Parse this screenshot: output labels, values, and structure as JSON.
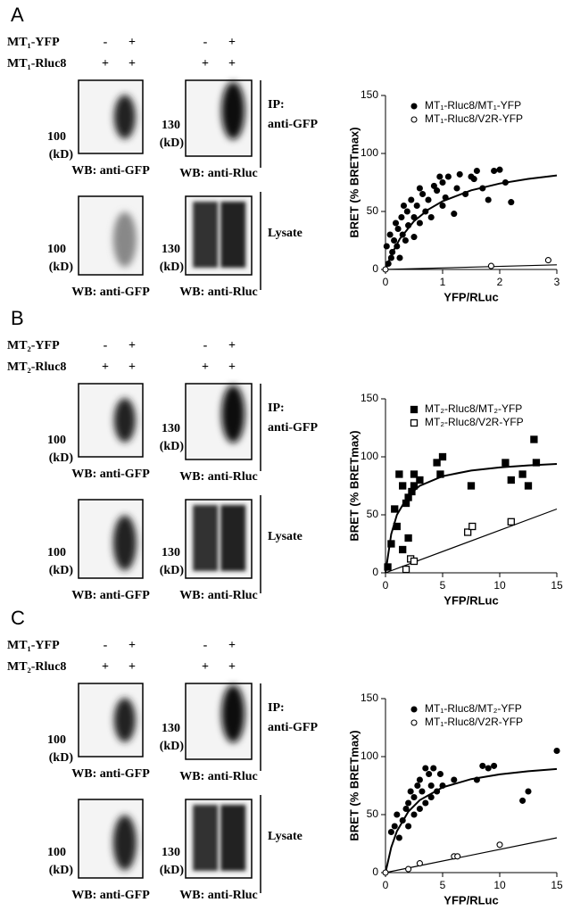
{
  "panels": [
    {
      "letter": "A",
      "rows": [
        {
          "label": "MT₁-YFP",
          "marks": [
            "-",
            "+",
            "-",
            "+"
          ]
        },
        {
          "label": "MT₁-Rluc8",
          "marks": [
            "+",
            "+",
            "+",
            "+"
          ]
        }
      ],
      "blots": [
        {
          "mw": "100",
          "kd": "(kD)",
          "wb": "WB: anti-GFP"
        },
        {
          "mw": "130",
          "kd": "(kD)",
          "wb": "WB: anti-Rluc"
        },
        {
          "mw": "100",
          "kd": "(kD)",
          "wb": "WB: anti-GFP"
        },
        {
          "mw": "130",
          "kd": "(kD)",
          "wb": "WB: anti-Rluc"
        }
      ],
      "ip": "IP:",
      "ip_ab": "anti-GFP",
      "lysate": "Lysate"
    },
    {
      "letter": "B",
      "rows": [
        {
          "label": "MT₂-YFP",
          "marks": [
            "-",
            "+",
            "-",
            "+"
          ]
        },
        {
          "label": "MT₂-Rluc8",
          "marks": [
            "+",
            "+",
            "+",
            "+"
          ]
        }
      ],
      "blots": [
        {
          "mw": "100",
          "kd": "(kD)",
          "wb": "WB: anti-GFP"
        },
        {
          "mw": "130",
          "kd": "(kD)",
          "wb": "WB: anti-Rluc"
        },
        {
          "mw": "100",
          "kd": "(kD)",
          "wb": "WB: anti-GFP"
        },
        {
          "mw": "130",
          "kd": "(kD)",
          "wb": "WB: anti-Rluc"
        }
      ],
      "ip": "IP:",
      "ip_ab": "anti-GFP",
      "lysate": "Lysate"
    },
    {
      "letter": "C",
      "rows": [
        {
          "label": "MT₁-YFP",
          "marks": [
            "-",
            "+",
            "-",
            "+"
          ]
        },
        {
          "label": "MT₂-Rluc8",
          "marks": [
            "+",
            "+",
            "+",
            "+"
          ]
        }
      ],
      "blots": [
        {
          "mw": "100",
          "kd": "(kD)",
          "wb": "WB: anti-GFP"
        },
        {
          "mw": "130",
          "kd": "(kD)",
          "wb": "WB: anti-Rluc"
        },
        {
          "mw": "100",
          "kd": "(kD)",
          "wb": "WB: anti-GFP"
        },
        {
          "mw": "130",
          "kd": "(kD)",
          "wb": "WB: anti-Rluc"
        }
      ],
      "ip": "IP:",
      "ip_ab": "anti-GFP",
      "lysate": "Lysate"
    }
  ],
  "chart_data": [
    {
      "type": "scatter",
      "xlabel": "YFP/RLuc",
      "ylabel": "BRET (% BRETmax)",
      "xlim": [
        0,
        3
      ],
      "xticks": [
        0,
        1,
        2,
        3
      ],
      "ylim": [
        0,
        150
      ],
      "yticks": [
        0,
        50,
        100,
        150
      ],
      "series": [
        {
          "name": "MT₁-Rluc8/MT₁-YFP",
          "color": "#000000",
          "marker": "circle",
          "filled": true,
          "x": [
            0.02,
            0.05,
            0.08,
            0.1,
            0.12,
            0.15,
            0.18,
            0.2,
            0.22,
            0.25,
            0.28,
            0.3,
            0.32,
            0.35,
            0.38,
            0.4,
            0.45,
            0.5,
            0.5,
            0.55,
            0.6,
            0.6,
            0.65,
            0.7,
            0.75,
            0.8,
            0.85,
            0.9,
            0.95,
            1.0,
            1.0,
            1.05,
            1.1,
            1.2,
            1.25,
            1.3,
            1.4,
            1.5,
            1.55,
            1.6,
            1.7,
            1.8,
            1.9,
            2.0,
            2.1,
            2.2
          ],
          "values": [
            20,
            5,
            30,
            10,
            15,
            25,
            40,
            20,
            35,
            10,
            45,
            30,
            55,
            25,
            50,
            38,
            60,
            45,
            28,
            55,
            70,
            40,
            65,
            50,
            60,
            45,
            72,
            68,
            80,
            55,
            75,
            62,
            80,
            48,
            70,
            82,
            65,
            80,
            78,
            85,
            70,
            60,
            85,
            86,
            75,
            58
          ]
        },
        {
          "name": "MT₁-Rluc8/V2R-YFP",
          "color": "#000000",
          "marker": "circle",
          "filled": false,
          "x": [
            0,
            1.85,
            2.85
          ],
          "values": [
            0,
            3,
            8
          ]
        }
      ],
      "fits": [
        {
          "x": [
            0,
            0.1,
            0.25,
            0.5,
            0.75,
            1,
            1.5,
            2,
            2.5,
            3
          ],
          "values": [
            0,
            12.5,
            26.3,
            41.7,
            51.7,
            58.8,
            68.2,
            74.1,
            78.1,
            81.1
          ]
        },
        {
          "x": [
            0,
            3
          ],
          "values": [
            0,
            4
          ]
        }
      ]
    },
    {
      "type": "scatter",
      "xlabel": "YFP/RLuc",
      "ylabel": "BRET (% BRETmax)",
      "xlim": [
        0,
        15
      ],
      "xticks": [
        0,
        5,
        10,
        15
      ],
      "ylim": [
        0,
        150
      ],
      "yticks": [
        0,
        50,
        100,
        150
      ],
      "series": [
        {
          "name": "MT₂-Rluc8/MT₂-YFP",
          "color": "#000000",
          "marker": "square",
          "filled": true,
          "x": [
            0.2,
            0.5,
            0.8,
            1,
            1.2,
            1.5,
            1.5,
            1.8,
            2,
            2,
            2.3,
            2.5,
            2.5,
            3,
            4.5,
            4.8,
            5,
            7.5,
            10.5,
            11,
            12,
            12.5,
            13,
            13.2
          ],
          "values": [
            5,
            25,
            55,
            40,
            85,
            20,
            75,
            60,
            65,
            30,
            70,
            75,
            85,
            80,
            95,
            85,
            100,
            75,
            95,
            80,
            85,
            75,
            115,
            95
          ]
        },
        {
          "name": "MT₂-Rluc8/V2R-YFP",
          "color": "#000000",
          "marker": "square",
          "filled": false,
          "x": [
            1.8,
            2.2,
            2.5,
            7.2,
            7.6,
            11
          ],
          "values": [
            3,
            12,
            10,
            35,
            40,
            44
          ]
        }
      ],
      "fits": [
        {
          "x": [
            0,
            0.5,
            1,
            2,
            3,
            5,
            7.5,
            10,
            12.5,
            15
          ],
          "values": [
            0,
            33.3,
            50,
            66.7,
            75,
            83.3,
            88.2,
            90.9,
            92.6,
            93.8
          ]
        },
        {
          "x": [
            0,
            15
          ],
          "values": [
            0,
            55
          ]
        }
      ]
    },
    {
      "type": "scatter",
      "xlabel": "YFP/RLuc",
      "ylabel": "BRET (% BRETmax)",
      "xlim": [
        0,
        15
      ],
      "xticks": [
        0,
        5,
        10,
        15
      ],
      "ylim": [
        0,
        150
      ],
      "yticks": [
        0,
        50,
        100,
        150
      ],
      "series": [
        {
          "name": "MT₁-Rluc8/MT₂-YFP",
          "color": "#000000",
          "marker": "circle",
          "filled": true,
          "x": [
            0.5,
            0.8,
            1,
            1.2,
            1.5,
            1.8,
            2,
            2,
            2.2,
            2.5,
            2.5,
            2.8,
            3,
            3,
            3.2,
            3.5,
            3.5,
            3.8,
            4,
            4,
            4.2,
            4.5,
            4.8,
            5,
            6,
            8,
            8.5,
            9,
            9.5,
            12,
            12.5,
            15
          ],
          "values": [
            35,
            40,
            50,
            30,
            45,
            55,
            60,
            40,
            70,
            50,
            65,
            75,
            55,
            80,
            70,
            90,
            60,
            85,
            75,
            65,
            90,
            70,
            85,
            75,
            80,
            80,
            92,
            90,
            92,
            62,
            70,
            105
          ]
        },
        {
          "name": "MT₁-Rluc8/V2R-YFP",
          "color": "#000000",
          "marker": "circle",
          "filled": false,
          "x": [
            0,
            2,
            3,
            6,
            6.3,
            10
          ],
          "values": [
            0,
            3,
            8,
            14,
            14,
            24
          ]
        }
      ],
      "fits": [
        {
          "x": [
            0,
            0.5,
            1,
            2,
            3,
            5,
            7.5,
            10,
            12.5,
            15
          ],
          "values": [
            0,
            21.7,
            35.7,
            52.6,
            62.5,
            73.5,
            80.6,
            84.7,
            87.4,
            89.3
          ]
        },
        {
          "x": [
            0,
            15
          ],
          "values": [
            0,
            30
          ]
        }
      ]
    }
  ]
}
